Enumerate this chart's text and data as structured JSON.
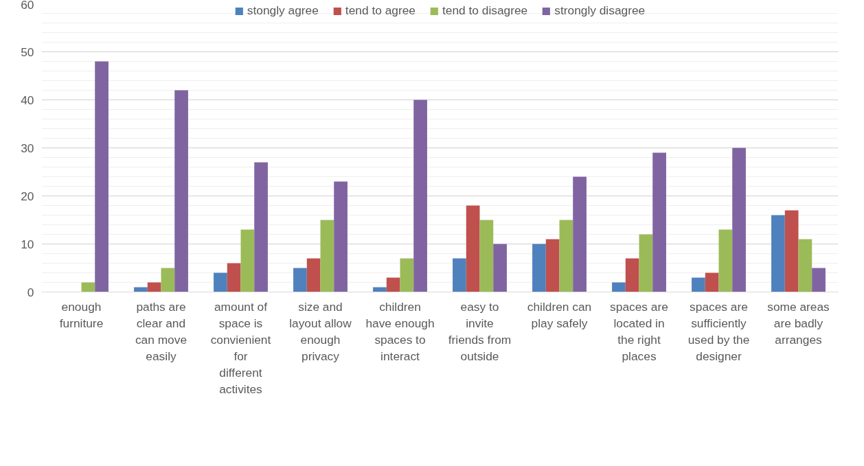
{
  "chart_data": {
    "type": "bar",
    "categories": [
      "enough furniture",
      "paths are clear and can move easily",
      "amount of space is convienient for different activites",
      "size and layout allow enough privacy",
      "children have enough spaces to interact",
      "easy to invite friends from outside",
      "children can play safely",
      "spaces are located in the right places",
      "spaces are sufficiently used by the designer",
      "some areas are badly arranges"
    ],
    "series": [
      {
        "name": "stongly agree",
        "color": "#4f81bd",
        "values": [
          0,
          1,
          4,
          5,
          1,
          7,
          10,
          2,
          3,
          16
        ]
      },
      {
        "name": "tend to agree",
        "color": "#c0504d",
        "values": [
          0,
          2,
          6,
          7,
          3,
          18,
          11,
          7,
          4,
          17
        ]
      },
      {
        "name": "tend to disagree",
        "color": "#9bbb59",
        "values": [
          2,
          5,
          13,
          15,
          7,
          15,
          15,
          12,
          13,
          11
        ]
      },
      {
        "name": "strongly disagree",
        "color": "#8064a2",
        "values": [
          48,
          42,
          27,
          23,
          40,
          10,
          24,
          29,
          30,
          5
        ]
      }
    ],
    "ylim": [
      0,
      60
    ],
    "yticks": [
      0,
      10,
      20,
      30,
      40,
      50,
      60
    ],
    "grid": "y",
    "legend": "top"
  }
}
